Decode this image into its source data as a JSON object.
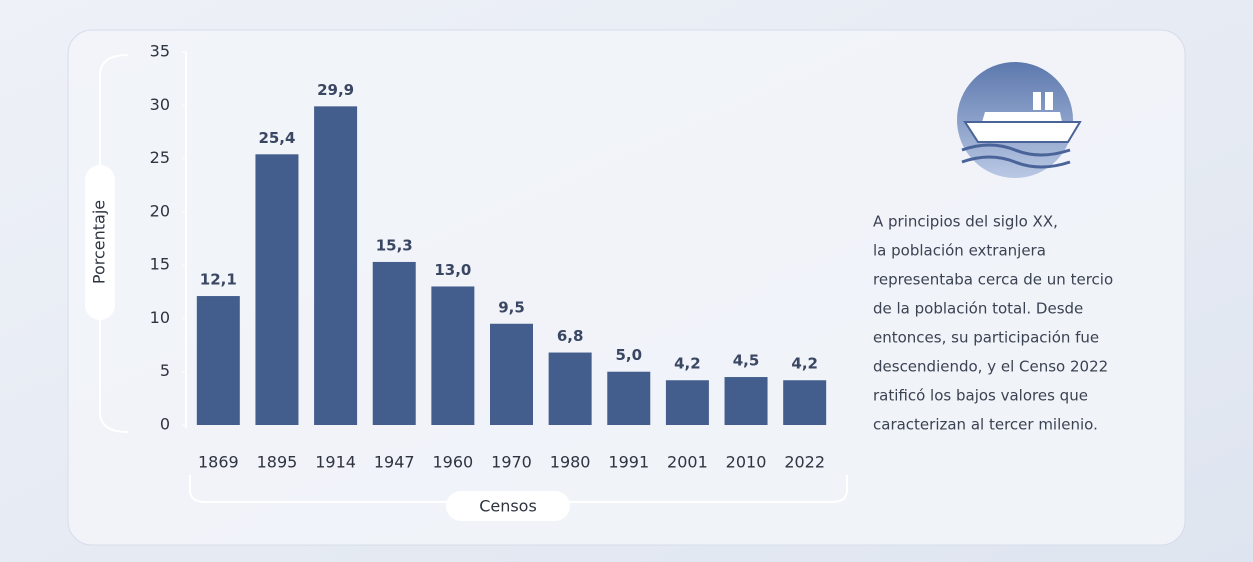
{
  "chart_data": {
    "type": "bar",
    "categories": [
      "1869",
      "1895",
      "1914",
      "1947",
      "1960",
      "1970",
      "1980",
      "1991",
      "2001",
      "2010",
      "2022"
    ],
    "values": [
      12.1,
      25.4,
      29.9,
      15.3,
      13.0,
      9.5,
      6.8,
      5.0,
      4.2,
      4.5,
      4.2
    ],
    "value_labels": [
      "12,1",
      "25,4",
      "29,9",
      "15,3",
      "13,0",
      "9,5",
      "6,8",
      "5,0",
      "4,2",
      "4,5",
      "4,2"
    ],
    "color": "#435e8c",
    "ylim": [
      0,
      35
    ],
    "yticks": [
      0,
      5,
      10,
      15,
      20,
      25,
      30,
      35
    ],
    "y_label": "Porcentaje",
    "x_label": "Censos",
    "annotation": [
      "A principios del siglo XX,",
      "la población extranjera",
      "representaba cerca de un tercio",
      "de la población total. Desde",
      "entonces, su participación fue",
      "descendiendo, y el Censo 2022",
      "ratificó los bajos valores que",
      "caracterizan al tercer milenio."
    ]
  }
}
